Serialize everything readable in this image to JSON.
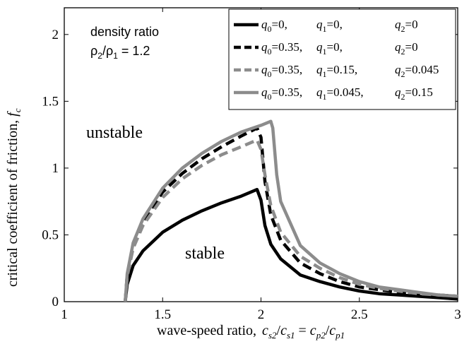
{
  "chart_data": {
    "type": "line",
    "xlabel": "wave-speed ratio,",
    "xlabel_expr": {
      "c": "c",
      "s2": "s2",
      "s1": "s1",
      "p2": "p2",
      "p1": "p1",
      "slash": "/",
      "equals": "="
    },
    "ylabel": "critical coefficient of friction,",
    "ylabel_expr": {
      "f": "f",
      "c": "c"
    },
    "xlim": [
      1,
      3
    ],
    "ylim": [
      0,
      2.2
    ],
    "xticks": [
      1,
      1.5,
      2,
      2.5,
      3
    ],
    "xtick_labels": [
      "1",
      "1.5",
      "2",
      "2.5",
      "3"
    ],
    "yticks": [
      0,
      0.5,
      1,
      1.5,
      2
    ],
    "ytick_labels": [
      "0",
      "0.5",
      "1",
      "1.5",
      "2"
    ],
    "legend_position": "top-right",
    "annotations": {
      "density_title": "density ratio",
      "density_rho": "ρ",
      "density_sub2": "2",
      "density_slash": "/",
      "density_sub1": "1",
      "density_value": " = 1.2",
      "unstable": "unstable",
      "stable": "stable"
    },
    "series": [
      {
        "legend": [
          {
            "sym": "q",
            "sub": "0",
            "text": "=0,"
          },
          {
            "sym": "q",
            "sub": "1",
            "text": "=0,"
          },
          {
            "sym": "q",
            "sub": "2",
            "text": "=0"
          }
        ],
        "color": "#000000",
        "dash": "solid",
        "x": [
          1.31,
          1.32,
          1.35,
          1.4,
          1.5,
          1.6,
          1.7,
          1.8,
          1.9,
          1.98,
          2.0,
          2.02,
          2.05,
          2.1,
          2.2,
          2.3,
          2.4,
          2.5,
          2.6,
          2.7,
          2.8,
          2.9,
          3.0
        ],
        "y": [
          0.0,
          0.13,
          0.27,
          0.38,
          0.52,
          0.61,
          0.68,
          0.74,
          0.79,
          0.84,
          0.76,
          0.57,
          0.43,
          0.32,
          0.2,
          0.15,
          0.11,
          0.08,
          0.06,
          0.05,
          0.04,
          0.03,
          0.02
        ]
      },
      {
        "legend": [
          {
            "sym": "q",
            "sub": "0",
            "text": "=0.35,"
          },
          {
            "sym": "q",
            "sub": "1",
            "text": "=0,"
          },
          {
            "sym": "q",
            "sub": "2",
            "text": "=0"
          }
        ],
        "color": "#000000",
        "dash": "dashed",
        "x": [
          1.31,
          1.32,
          1.35,
          1.4,
          1.5,
          1.6,
          1.7,
          1.8,
          1.9,
          1.98,
          2.0,
          2.02,
          2.05,
          2.1,
          2.2,
          2.3,
          2.4,
          2.5,
          2.6,
          2.7,
          2.8,
          2.9,
          3.0
        ],
        "y": [
          0.0,
          0.2,
          0.42,
          0.6,
          0.82,
          0.96,
          1.07,
          1.16,
          1.24,
          1.3,
          1.23,
          0.9,
          0.65,
          0.46,
          0.29,
          0.21,
          0.15,
          0.11,
          0.09,
          0.07,
          0.06,
          0.05,
          0.04
        ]
      },
      {
        "legend": [
          {
            "sym": "q",
            "sub": "0",
            "text": "=0.35,"
          },
          {
            "sym": "q",
            "sub": "1",
            "text": "=0.15,"
          },
          {
            "sym": "q",
            "sub": "2",
            "text": "=0.045"
          }
        ],
        "color": "#8c8c8c",
        "dash": "dashed",
        "x": [
          1.31,
          1.32,
          1.35,
          1.4,
          1.5,
          1.6,
          1.7,
          1.8,
          1.9,
          1.98,
          2.0,
          2.02,
          2.05,
          2.1,
          2.2,
          2.3,
          2.4,
          2.5,
          2.6,
          2.7,
          2.8,
          2.9,
          3.0
        ],
        "y": [
          0.0,
          0.19,
          0.4,
          0.57,
          0.78,
          0.92,
          1.02,
          1.1,
          1.16,
          1.21,
          1.14,
          0.95,
          0.72,
          0.52,
          0.34,
          0.25,
          0.18,
          0.13,
          0.1,
          0.08,
          0.06,
          0.05,
          0.04
        ]
      },
      {
        "legend": [
          {
            "sym": "q",
            "sub": "0",
            "text": "=0.35,"
          },
          {
            "sym": "q",
            "sub": "1",
            "text": "=0.045,"
          },
          {
            "sym": "q",
            "sub": "2",
            "text": "=0.15"
          }
        ],
        "color": "#8c8c8c",
        "dash": "solid",
        "x": [
          1.31,
          1.32,
          1.35,
          1.4,
          1.5,
          1.6,
          1.7,
          1.8,
          1.9,
          2.0,
          2.05,
          2.06,
          2.08,
          2.1,
          2.2,
          2.3,
          2.4,
          2.5,
          2.6,
          2.7,
          2.8,
          2.9,
          3.0
        ],
        "y": [
          0.0,
          0.21,
          0.44,
          0.62,
          0.85,
          1.0,
          1.11,
          1.2,
          1.27,
          1.32,
          1.35,
          1.3,
          0.95,
          0.75,
          0.42,
          0.29,
          0.21,
          0.15,
          0.11,
          0.09,
          0.07,
          0.05,
          0.04
        ]
      }
    ]
  }
}
